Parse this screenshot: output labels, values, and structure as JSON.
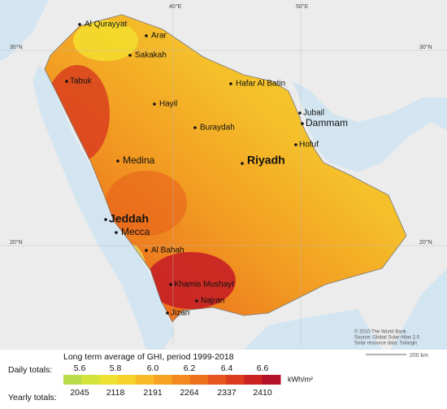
{
  "grid_labels": {
    "lon_40": "40°E",
    "lon_50": "50°E",
    "lat_30": "30°N",
    "lat_20": "20°N"
  },
  "cities": [
    "Al Qurayyat",
    "Arar",
    "Sakakah",
    "Tabuk",
    "Hafar Al Batin",
    "Hayil",
    "Jubail",
    "Dammam",
    "Buraydah",
    "Hofuf",
    "Riyadh",
    "Medina",
    "Jeddah",
    "Mecca",
    "Al Bahah",
    "Khamis Mushayt",
    "Najran",
    "Jizan"
  ],
  "credits": [
    "© 2010 The World Bank",
    "Source: Global Solar Atlas 2.0",
    "Solar resource data: Solargis"
  ],
  "scale": "200 km",
  "legend": {
    "title": "Long term average of GHI, period 1999-2018",
    "daily_label": "Daily totals:",
    "daily": [
      "5.6",
      "5.8",
      "6.0",
      "6.2",
      "6.4",
      "6.6"
    ],
    "yearly_label": "Yearly totals:",
    "yearly": [
      2045,
      2118,
      2191,
      2264,
      2337,
      2410
    ],
    "unit": "kWh/m²",
    "colors": [
      "#b8dc4a",
      "#d4e23c",
      "#ede132",
      "#f7d22b",
      "#f8bb27",
      "#f6a323",
      "#f38a1f",
      "#ee701c",
      "#e6561c",
      "#dc3b1e",
      "#cc2222",
      "#b3102a"
    ]
  }
}
